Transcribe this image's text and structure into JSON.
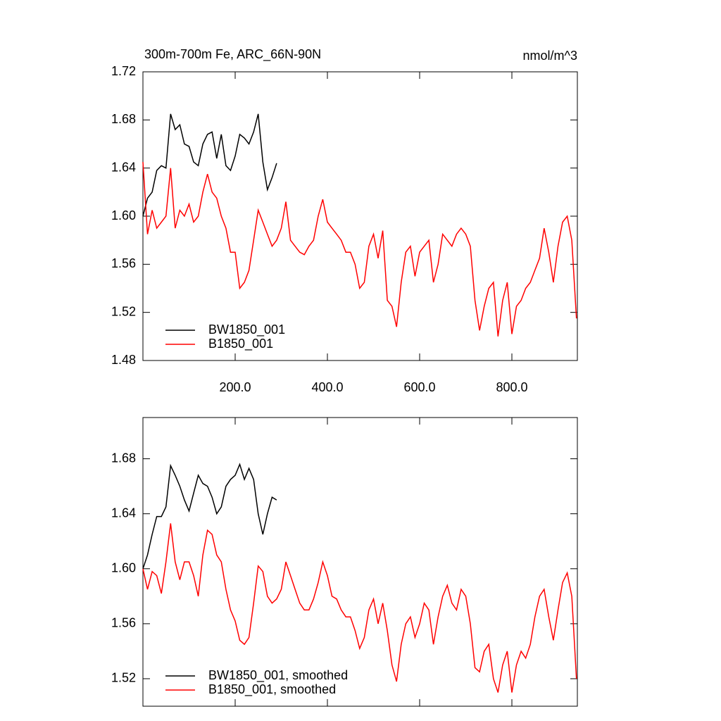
{
  "chart_data": [
    {
      "type": "line",
      "title": "300m-700m Fe, ARC_66N-90N",
      "units": "nmol/m^3",
      "xlim": [
        0,
        942
      ],
      "ylim": [
        1.48,
        1.72
      ],
      "xticks": [
        {
          "value": 200,
          "label": "200.0"
        },
        {
          "value": 400,
          "label": "400.0"
        },
        {
          "value": 600,
          "label": "600.0"
        },
        {
          "value": 800,
          "label": "800.0"
        }
      ],
      "show_xtick_labels": true,
      "yticks": [
        1.48,
        1.52,
        1.56,
        {
          "value": 1.6,
          "label": "1.60"
        },
        1.64,
        1.68,
        1.72
      ],
      "series": [
        {
          "name": "BW1850_001",
          "color": "#000000",
          "x": [
            0,
            10,
            20,
            30,
            40,
            50,
            60,
            70,
            80,
            90,
            100,
            110,
            120,
            130,
            140,
            150,
            160,
            170,
            180,
            190,
            200,
            210,
            220,
            230,
            240,
            250,
            260,
            270,
            280,
            290
          ],
          "values": [
            1.6,
            1.615,
            1.62,
            1.638,
            1.642,
            1.64,
            1.685,
            1.672,
            1.676,
            1.66,
            1.658,
            1.645,
            1.642,
            1.66,
            1.668,
            1.67,
            1.648,
            1.668,
            1.642,
            1.638,
            1.65,
            1.668,
            1.665,
            1.66,
            1.67,
            1.685,
            1.645,
            1.622,
            1.632,
            1.644
          ]
        },
        {
          "name": "B1850_001",
          "color": "#ff0000",
          "x": [
            0,
            10,
            20,
            30,
            40,
            50,
            60,
            70,
            80,
            90,
            100,
            110,
            120,
            130,
            140,
            150,
            160,
            170,
            180,
            190,
            200,
            210,
            220,
            230,
            240,
            250,
            260,
            270,
            280,
            290,
            300,
            310,
            320,
            330,
            340,
            350,
            360,
            370,
            380,
            390,
            400,
            410,
            420,
            430,
            440,
            450,
            460,
            470,
            480,
            490,
            500,
            510,
            520,
            530,
            540,
            550,
            560,
            570,
            580,
            590,
            600,
            610,
            620,
            630,
            640,
            650,
            660,
            670,
            680,
            690,
            700,
            710,
            720,
            730,
            740,
            750,
            760,
            770,
            780,
            790,
            800,
            810,
            820,
            830,
            840,
            850,
            860,
            870,
            880,
            890,
            900,
            910,
            920,
            930,
            940
          ],
          "values": [
            1.645,
            1.585,
            1.605,
            1.59,
            1.595,
            1.6,
            1.64,
            1.59,
            1.605,
            1.6,
            1.61,
            1.595,
            1.6,
            1.62,
            1.635,
            1.62,
            1.615,
            1.6,
            1.59,
            1.57,
            1.57,
            1.54,
            1.545,
            1.555,
            1.58,
            1.605,
            1.595,
            1.585,
            1.575,
            1.58,
            1.59,
            1.612,
            1.58,
            1.575,
            1.57,
            1.568,
            1.575,
            1.58,
            1.6,
            1.614,
            1.595,
            1.59,
            1.585,
            1.58,
            1.57,
            1.57,
            1.56,
            1.54,
            1.545,
            1.575,
            1.585,
            1.565,
            1.588,
            1.53,
            1.525,
            1.508,
            1.545,
            1.57,
            1.575,
            1.55,
            1.57,
            1.575,
            1.58,
            1.545,
            1.56,
            1.585,
            1.58,
            1.575,
            1.585,
            1.59,
            1.585,
            1.575,
            1.53,
            1.505,
            1.525,
            1.54,
            1.545,
            1.5,
            1.53,
            1.545,
            1.502,
            1.525,
            1.53,
            1.54,
            1.545,
            1.555,
            1.565,
            1.59,
            1.57,
            1.545,
            1.575,
            1.595,
            1.6,
            1.58,
            1.515
          ]
        }
      ],
      "legend": "lower left"
    },
    {
      "type": "line",
      "xlim": [
        0,
        942
      ],
      "ylim": [
        1.5,
        1.71
      ],
      "xticks": [
        200,
        400,
        600,
        800
      ],
      "show_xtick_labels": false,
      "yticks": [
        1.52,
        1.56,
        {
          "value": 1.6,
          "label": "1.60"
        },
        1.64,
        1.68
      ],
      "series": [
        {
          "name": "BW1850_001, smoothed",
          "color": "#000000",
          "x": [
            0,
            10,
            20,
            30,
            40,
            50,
            60,
            70,
            80,
            90,
            100,
            110,
            120,
            130,
            140,
            150,
            160,
            170,
            180,
            190,
            200,
            210,
            220,
            230,
            240,
            250,
            260,
            270,
            280,
            290
          ],
          "values": [
            1.6,
            1.61,
            1.625,
            1.638,
            1.638,
            1.645,
            1.675,
            1.668,
            1.66,
            1.65,
            1.642,
            1.655,
            1.668,
            1.662,
            1.66,
            1.652,
            1.64,
            1.645,
            1.66,
            1.665,
            1.668,
            1.676,
            1.665,
            1.673,
            1.665,
            1.64,
            1.625,
            1.64,
            1.652,
            1.65
          ]
        },
        {
          "name": "B1850_001, smoothed",
          "color": "#ff0000",
          "x": [
            0,
            10,
            20,
            30,
            40,
            50,
            60,
            70,
            80,
            90,
            100,
            110,
            120,
            130,
            140,
            150,
            160,
            170,
            180,
            190,
            200,
            210,
            220,
            230,
            240,
            250,
            260,
            270,
            280,
            290,
            300,
            310,
            320,
            330,
            340,
            350,
            360,
            370,
            380,
            390,
            400,
            410,
            420,
            430,
            440,
            450,
            460,
            470,
            480,
            490,
            500,
            510,
            520,
            530,
            540,
            550,
            560,
            570,
            580,
            590,
            600,
            610,
            620,
            630,
            640,
            650,
            660,
            670,
            680,
            690,
            700,
            710,
            720,
            730,
            740,
            750,
            760,
            770,
            780,
            790,
            800,
            810,
            820,
            830,
            840,
            850,
            860,
            870,
            880,
            890,
            900,
            910,
            920,
            930,
            940
          ],
          "values": [
            1.6,
            1.585,
            1.598,
            1.595,
            1.582,
            1.605,
            1.633,
            1.605,
            1.592,
            1.605,
            1.605,
            1.595,
            1.58,
            1.61,
            1.628,
            1.625,
            1.61,
            1.605,
            1.585,
            1.57,
            1.562,
            1.548,
            1.545,
            1.55,
            1.575,
            1.602,
            1.598,
            1.58,
            1.575,
            1.578,
            1.585,
            1.605,
            1.595,
            1.585,
            1.575,
            1.57,
            1.57,
            1.578,
            1.59,
            1.605,
            1.595,
            1.58,
            1.578,
            1.57,
            1.565,
            1.565,
            1.555,
            1.542,
            1.55,
            1.57,
            1.578,
            1.56,
            1.575,
            1.555,
            1.53,
            1.518,
            1.545,
            1.56,
            1.565,
            1.55,
            1.56,
            1.575,
            1.57,
            1.545,
            1.565,
            1.58,
            1.588,
            1.575,
            1.57,
            1.585,
            1.58,
            1.56,
            1.528,
            1.525,
            1.54,
            1.545,
            1.52,
            1.51,
            1.53,
            1.54,
            1.51,
            1.53,
            1.54,
            1.535,
            1.545,
            1.565,
            1.58,
            1.585,
            1.565,
            1.548,
            1.57,
            1.59,
            1.597,
            1.58,
            1.52
          ]
        }
      ],
      "legend": "lower left"
    }
  ]
}
